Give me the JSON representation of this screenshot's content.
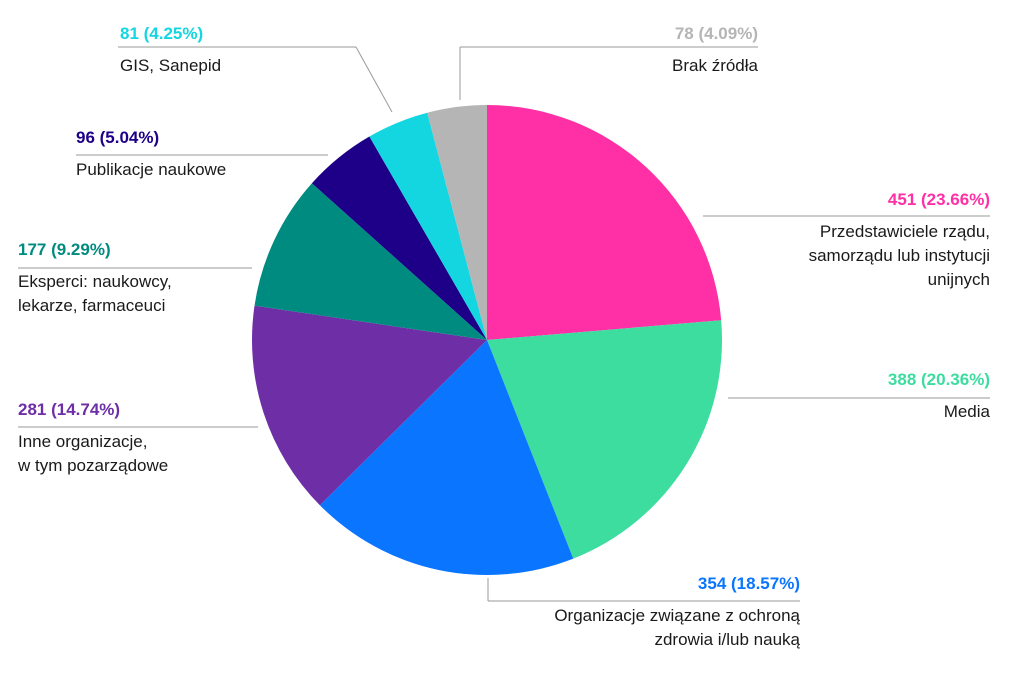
{
  "chart_data": {
    "type": "pie",
    "slices": [
      {
        "label": "Przedstawiciele rządu,\nsamorządu lub instytucji\nunijnych",
        "value": 451,
        "percent": "23.66%",
        "value_text": "451  (23.66%)",
        "color": "#ff2fa5"
      },
      {
        "label": "Media",
        "value": 388,
        "percent": "20.36%",
        "value_text": "388  (20.36%)",
        "color": "#3ddc9f"
      },
      {
        "label": "Organizacje związane z ochroną\nzdrowia i/lub nauką",
        "value": 354,
        "percent": "18.57%",
        "value_text": "354  (18.57%)",
        "color": "#0a75ff"
      },
      {
        "label": "Inne organizacje,\nw tym pozarządowe",
        "value": 281,
        "percent": "14.74%",
        "value_text": "281  (14.74%)",
        "color": "#6e2fa6"
      },
      {
        "label": "Eksperci: naukowcy,\nlekarze, farmaceuci",
        "value": 177,
        "percent": "9.29%",
        "value_text": "177  (9.29%)",
        "color": "#008b80"
      },
      {
        "label": "Publikacje naukowe",
        "value": 96,
        "percent": "5.04%",
        "value_text": "96  (5.04%)",
        "color": "#1e0088"
      },
      {
        "label": "GIS, Sanepid",
        "value": 81,
        "percent": "4.25%",
        "value_text": "81  (4.25%)",
        "color": "#14d6e0"
      },
      {
        "label": "Brak źródła",
        "value": 78,
        "percent": "4.09%",
        "value_text": "78  (4.09%)",
        "color": "#b5b5b5"
      }
    ]
  }
}
